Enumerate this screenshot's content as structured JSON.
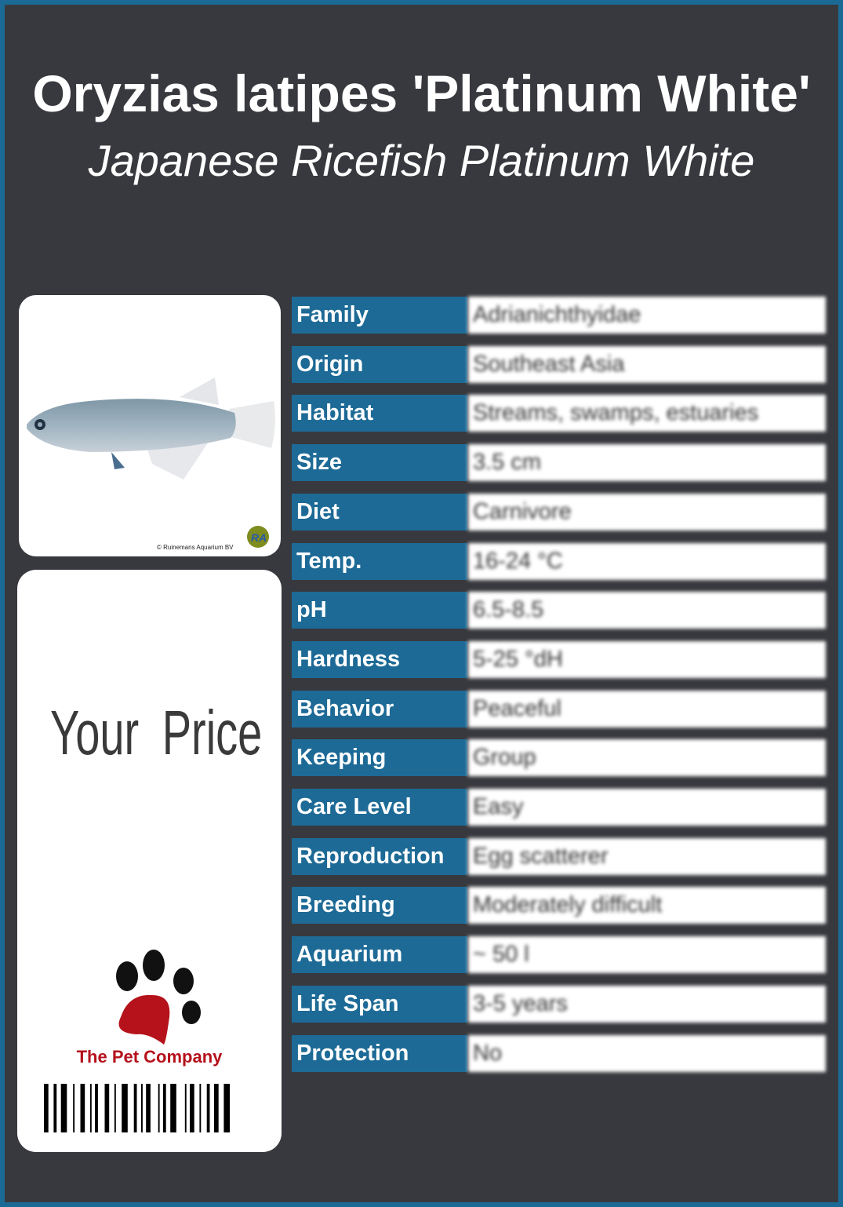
{
  "header": {
    "title": "Oryzias latipes 'Platinum White'",
    "subtitle": "Japanese Ricefish Platinum White"
  },
  "photo": {
    "copyright": "© Ruinemans Aquarium BV",
    "logo_text": "RA"
  },
  "price": {
    "label": "Your Price"
  },
  "brand": {
    "name": "The Pet Company",
    "paw_color": "#b5121b"
  },
  "colors": {
    "background": "#38393e",
    "accent": "#1d6a96",
    "border": "#1b6a95"
  },
  "specs": [
    {
      "label": "Family",
      "value": "Adrianichthyidae"
    },
    {
      "label": "Origin",
      "value": "Southeast Asia"
    },
    {
      "label": "Habitat",
      "value": "Streams, swamps, estuaries"
    },
    {
      "label": "Size",
      "value": "3.5 cm"
    },
    {
      "label": "Diet",
      "value": "Carnivore"
    },
    {
      "label": "Temp.",
      "value": "16-24 °C"
    },
    {
      "label": "pH",
      "value": "6.5-8.5"
    },
    {
      "label": "Hardness",
      "value": "5-25 °dH"
    },
    {
      "label": "Behavior",
      "value": "Peaceful"
    },
    {
      "label": "Keeping",
      "value": "Group"
    },
    {
      "label": "Care Level",
      "value": "Easy"
    },
    {
      "label": "Reproduction",
      "value": "Egg scatterer"
    },
    {
      "label": "Breeding",
      "value": "Moderately difficult"
    },
    {
      "label": "Aquarium",
      "value": "~ 50 l"
    },
    {
      "label": "Life Span",
      "value": "3-5 years"
    },
    {
      "label": "Protection",
      "value": "No"
    }
  ]
}
